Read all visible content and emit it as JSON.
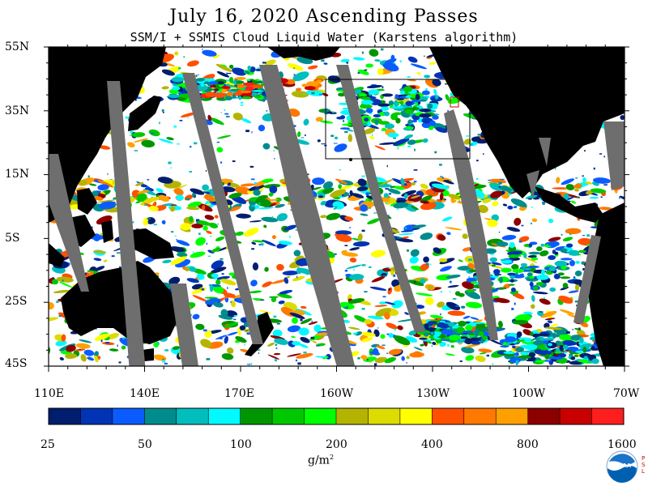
{
  "header": {
    "title": "July 16, 2020  Ascending Passes",
    "subtitle": "SSM/I + SSMIS Cloud Liquid Water (Karstens algorithm)"
  },
  "map": {
    "lat_labels": [
      "55N",
      "35N",
      "15N",
      "5S",
      "25S",
      "45S"
    ],
    "lon_labels": [
      "110E",
      "140E",
      "170E",
      "160W",
      "130W",
      "100W",
      "70W"
    ]
  },
  "colorbar": {
    "colors": [
      "#001d6e",
      "#0034b4",
      "#0a5cff",
      "#008c8c",
      "#00bebe",
      "#00faff",
      "#009600",
      "#00c800",
      "#00ff00",
      "#b4b400",
      "#dcdc00",
      "#ffff00",
      "#ff5000",
      "#ff7800",
      "#ffa000",
      "#8c0000",
      "#c80000",
      "#ff1e1e"
    ],
    "labels": [
      "25",
      "50",
      "100",
      "200",
      "400",
      "800",
      "1600"
    ],
    "units": "g/m",
    "units_exp": "2"
  },
  "logo": {
    "name": "NOAA",
    "side_text": "PSL"
  }
}
